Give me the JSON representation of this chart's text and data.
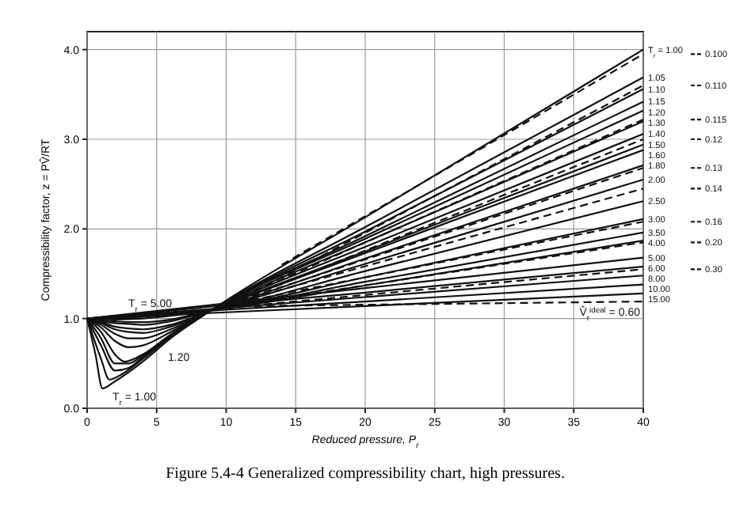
{
  "chart_data": {
    "type": "line",
    "title": "Figure 5.4-4  Generalized compressibility chart, high pressures.",
    "xlabel": "Reduced pressure, P$_{r}$",
    "ylabel": "Compressibility factor, z = PV̂/RT",
    "xlim": [
      0,
      40
    ],
    "ylim": [
      0,
      4.2
    ],
    "xticks": [
      0,
      5,
      10,
      15,
      20,
      25,
      30,
      35,
      40
    ],
    "yticks": [
      {
        "value": 0,
        "label": "0.0"
      },
      {
        "value": 1,
        "label": "1.0"
      },
      {
        "value": 2,
        "label": "2.0"
      },
      {
        "value": 3,
        "label": "3.0"
      },
      {
        "value": 4,
        "label": "4.0"
      }
    ],
    "grid": true,
    "legend": "right",
    "marker": "none",
    "line_style": "solid",
    "annotations": [
      "T$_{r}$ = 5.00",
      "1.20",
      "T$_{r}$ = 1.00"
    ],
    "series": [
      {
        "name": "T$_{r}$ = 1.00",
        "color": "#111111",
        "x": [
          0,
          0.6,
          1.1,
          2,
          4,
          6,
          9,
          20,
          40
        ],
        "values": [
          1,
          0.6,
          0.22,
          0.3,
          0.52,
          0.78,
          1.1,
          2.13,
          4.0
        ]
      },
      {
        "name": "1.05",
        "color": "#111111",
        "x": [
          0,
          1,
          1.6,
          2.5,
          4,
          6,
          9,
          20,
          40
        ],
        "values": [
          1,
          0.55,
          0.32,
          0.38,
          0.55,
          0.8,
          1.1,
          2.02,
          3.69
        ]
      },
      {
        "name": "1.10",
        "color": "#111111",
        "x": [
          0,
          1,
          2,
          3,
          4,
          6,
          9,
          20,
          40
        ],
        "values": [
          1,
          0.7,
          0.42,
          0.45,
          0.57,
          0.81,
          1.1,
          1.97,
          3.56
        ]
      },
      {
        "name": "1.15",
        "color": "#111111",
        "x": [
          0,
          1,
          2,
          3,
          4,
          6,
          9,
          20,
          40
        ],
        "values": [
          1,
          0.78,
          0.5,
          0.5,
          0.59,
          0.82,
          1.1,
          1.92,
          3.42
        ]
      },
      {
        "name": "1.20",
        "color": "#111111",
        "x": [
          0,
          1,
          2,
          2.7,
          4,
          6,
          9,
          20,
          40
        ],
        "values": [
          1,
          0.85,
          0.6,
          0.52,
          0.6,
          0.82,
          1.1,
          1.89,
          3.32
        ]
      },
      {
        "name": "1.30",
        "color": "#111111",
        "x": [
          0,
          1,
          2,
          3,
          4,
          6,
          9,
          20,
          40
        ],
        "values": [
          1,
          0.9,
          0.75,
          0.68,
          0.7,
          0.85,
          1.1,
          1.85,
          3.2
        ]
      },
      {
        "name": "1.40",
        "color": "#111111",
        "x": [
          0,
          1,
          2,
          3,
          4,
          6,
          9,
          20,
          40
        ],
        "values": [
          1,
          0.93,
          0.83,
          0.78,
          0.78,
          0.88,
          1.1,
          1.8,
          3.06
        ]
      },
      {
        "name": "1.50",
        "color": "#111111",
        "x": [
          0,
          1,
          2,
          3,
          4,
          6,
          9,
          20,
          40
        ],
        "values": [
          1,
          0.95,
          0.88,
          0.85,
          0.84,
          0.91,
          1.1,
          1.75,
          2.94
        ]
      },
      {
        "name": "1.60",
        "color": "#111111",
        "x": [
          0,
          1,
          2,
          3,
          4,
          6,
          9,
          20,
          40
        ],
        "values": [
          1,
          0.96,
          0.91,
          0.89,
          0.88,
          0.93,
          1.1,
          1.73,
          2.88
        ]
      },
      {
        "name": "1.80",
        "color": "#111111",
        "x": [
          0,
          1,
          2,
          3,
          4,
          6,
          9,
          20,
          40
        ],
        "values": [
          1,
          0.97,
          0.95,
          0.94,
          0.93,
          0.97,
          1.1,
          1.67,
          2.71
        ]
      },
      {
        "name": "2.00",
        "color": "#111111",
        "x": [
          0,
          1,
          2,
          3,
          4,
          6,
          9,
          20,
          40
        ],
        "values": [
          1,
          0.98,
          0.97,
          0.96,
          0.96,
          0.99,
          1.1,
          1.61,
          2.55
        ]
      },
      {
        "name": "2.50",
        "color": "#111111",
        "x": [
          0,
          2,
          4,
          6,
          9,
          20,
          40
        ],
        "values": [
          1,
          0.99,
          1.0,
          1.03,
          1.1,
          1.53,
          2.31
        ]
      },
      {
        "name": "3.00",
        "color": "#111111",
        "x": [
          0,
          2,
          4,
          6,
          9,
          20,
          40
        ],
        "values": [
          1,
          1.0,
          1.02,
          1.04,
          1.1,
          1.46,
          2.11
        ]
      },
      {
        "name": "3.50",
        "color": "#111111",
        "x": [
          0,
          2,
          4,
          6,
          9,
          20,
          40
        ],
        "values": [
          1,
          1.01,
          1.03,
          1.05,
          1.1,
          1.41,
          1.96
        ]
      },
      {
        "name": "4.00",
        "color": "#111111",
        "x": [
          0,
          2,
          4,
          6,
          9,
          20,
          40
        ],
        "values": [
          1,
          1.02,
          1.04,
          1.06,
          1.1,
          1.37,
          1.87
        ]
      },
      {
        "name": "5.00",
        "color": "#111111",
        "x": [
          0,
          10,
          20,
          40
        ],
        "values": [
          1,
          1.17,
          1.34,
          1.68
        ]
      },
      {
        "name": "6.00",
        "color": "#111111",
        "x": [
          0,
          10,
          20,
          40
        ],
        "values": [
          1,
          1.15,
          1.29,
          1.58
        ]
      },
      {
        "name": "8.00",
        "color": "#111111",
        "x": [
          0,
          10,
          20,
          40
        ],
        "values": [
          1,
          1.12,
          1.24,
          1.48
        ]
      },
      {
        "name": "10.00",
        "color": "#111111",
        "x": [
          0,
          10,
          20,
          40
        ],
        "values": [
          1,
          1.1,
          1.19,
          1.38
        ]
      },
      {
        "name": "15.00",
        "color": "#111111",
        "x": [
          0,
          10,
          20,
          40
        ],
        "values": [
          1,
          1.07,
          1.14,
          1.28
        ]
      },
      {
        "name": "0.100",
        "color": "#111111",
        "line_style": "dashed",
        "x": [
          14,
          40
        ],
        "values": [
          1.6,
          3.95
        ]
      },
      {
        "name": "0.110",
        "color": "#111111",
        "line_style": "dashed",
        "x": [
          12,
          40
        ],
        "values": [
          1.3,
          3.6
        ]
      },
      {
        "name": "0.115",
        "color": "#111111",
        "line_style": "dashed",
        "x": [
          12,
          40
        ],
        "values": [
          1.3,
          3.22
        ]
      },
      {
        "name": "0.12",
        "color": "#111111",
        "line_style": "dashed",
        "x": [
          11,
          40
        ],
        "values": [
          1.2,
          3.0
        ]
      },
      {
        "name": "0.13",
        "color": "#111111",
        "line_style": "dashed",
        "x": [
          11,
          40
        ],
        "values": [
          1.2,
          2.68
        ]
      },
      {
        "name": "0.14",
        "color": "#111111",
        "line_style": "dashed",
        "x": [
          10,
          40
        ],
        "values": [
          1.15,
          2.45
        ]
      },
      {
        "name": "0.16",
        "color": "#111111",
        "line_style": "dashed",
        "x": [
          10,
          40
        ],
        "values": [
          1.15,
          2.08
        ]
      },
      {
        "name": "0.20",
        "color": "#111111",
        "line_style": "dashed",
        "x": [
          10,
          40
        ],
        "values": [
          1.13,
          1.85
        ]
      },
      {
        "name": "0.30",
        "color": "#111111",
        "line_style": "dashed",
        "x": [
          10,
          40
        ],
        "values": [
          1.12,
          1.55
        ]
      },
      {
        "name": "V̂$_{r}$$^{ideal}$ = 0.60",
        "color": "#111111",
        "line_style": "dashed",
        "x": [
          12,
          40
        ],
        "values": [
          1.14,
          1.19
        ]
      }
    ]
  }
}
